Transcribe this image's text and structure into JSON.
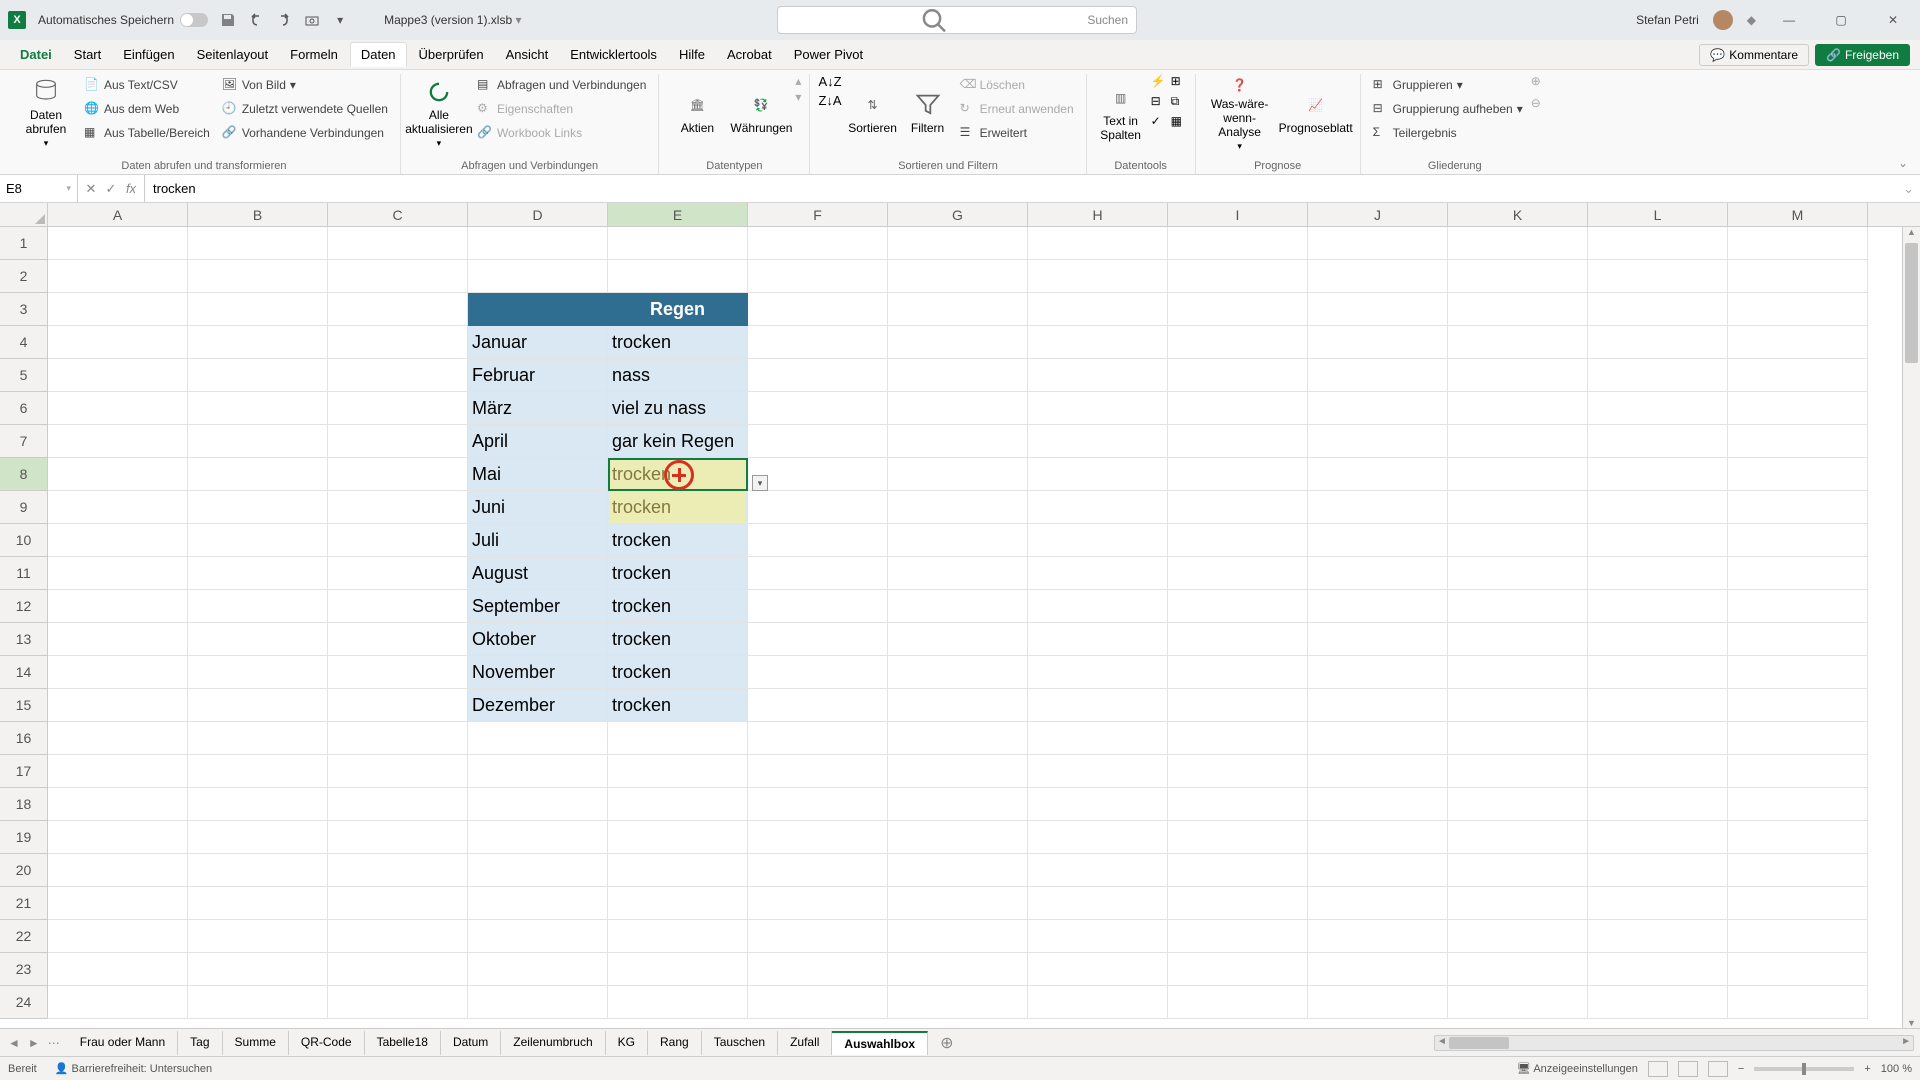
{
  "titlebar": {
    "autosave_label": "Automatisches Speichern",
    "filename": "Mappe3 (version 1).xlsb",
    "search_placeholder": "Suchen",
    "username": "Stefan Petri"
  },
  "ribbon_tabs": {
    "file": "Datei",
    "tabs": [
      "Start",
      "Einfügen",
      "Seitenlayout",
      "Formeln",
      "Daten",
      "Überprüfen",
      "Ansicht",
      "Entwicklertools",
      "Hilfe",
      "Acrobat",
      "Power Pivot"
    ],
    "active": "Daten",
    "comments": "Kommentare",
    "share": "Freigeben"
  },
  "ribbon": {
    "g1": {
      "label": "Daten abrufen und transformieren",
      "big": "Daten abrufen",
      "items": [
        "Aus Text/CSV",
        "Aus dem Web",
        "Aus Tabelle/Bereich",
        "Von Bild",
        "Zuletzt verwendete Quellen",
        "Vorhandene Verbindungen"
      ]
    },
    "g2": {
      "label": "Abfragen und Verbindungen",
      "big": "Alle aktualisieren",
      "items": [
        "Abfragen und Verbindungen",
        "Eigenschaften",
        "Workbook Links"
      ]
    },
    "g3": {
      "label": "Datentypen",
      "items": [
        "Aktien",
        "Währungen"
      ]
    },
    "g4": {
      "label": "Sortieren und Filtern",
      "sort": "Sortieren",
      "filter": "Filtern",
      "items": [
        "Löschen",
        "Erneut anwenden",
        "Erweitert"
      ]
    },
    "g5": {
      "label": "Datentools",
      "big": "Text in Spalten"
    },
    "g6": {
      "label": "Prognose",
      "items": [
        "Was-wäre-wenn-Analyse",
        "Prognoseblatt"
      ]
    },
    "g7": {
      "label": "Gliederung",
      "items": [
        "Gruppieren",
        "Gruppierung aufheben",
        "Teilergebnis"
      ]
    }
  },
  "formulabar": {
    "cellref": "E8",
    "value": "trocken"
  },
  "columns": [
    "A",
    "B",
    "C",
    "D",
    "E",
    "F",
    "G",
    "H",
    "I",
    "J",
    "K",
    "L",
    "M"
  ],
  "active_col": "E",
  "active_row": 8,
  "table": {
    "header_col1": "",
    "header_col2": "Regen",
    "rows": [
      {
        "month": "Januar",
        "value": "trocken"
      },
      {
        "month": "Februar",
        "value": "nass"
      },
      {
        "month": "März",
        "value": "viel zu nass"
      },
      {
        "month": "April",
        "value": "gar kein Regen"
      },
      {
        "month": "Mai",
        "value": "trocken"
      },
      {
        "month": "Juni",
        "value": "trocken"
      },
      {
        "month": "Juli",
        "value": "trocken"
      },
      {
        "month": "August",
        "value": "trocken"
      },
      {
        "month": "September",
        "value": "trocken"
      },
      {
        "month": "Oktober",
        "value": "trocken"
      },
      {
        "month": "November",
        "value": "trocken"
      },
      {
        "month": "Dezember",
        "value": "trocken"
      }
    ]
  },
  "sheet_tabs": {
    "tabs": [
      "Frau oder Mann",
      "Tag",
      "Summe",
      "QR-Code",
      "Tabelle18",
      "Datum",
      "Zeilenumbruch",
      "KG",
      "Rang",
      "Tauschen",
      "Zufall",
      "Auswahlbox"
    ],
    "active": "Auswahlbox"
  },
  "statusbar": {
    "ready": "Bereit",
    "accessibility": "Barrierefreiheit: Untersuchen",
    "display_settings": "Anzeigeeinstellungen",
    "zoom": "100 %"
  }
}
